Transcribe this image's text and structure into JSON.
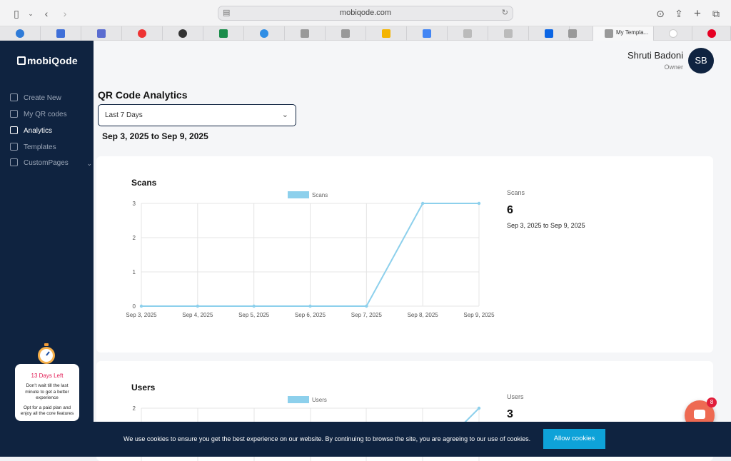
{
  "browser": {
    "url": "mobiqode.com",
    "active_tab_label": "My Templa..."
  },
  "sidebar": {
    "logo": "mobiQode",
    "items": [
      {
        "label": "Create New",
        "icon": "plus-icon"
      },
      {
        "label": "My QR codes",
        "icon": "qr-icon"
      },
      {
        "label": "Analytics",
        "icon": "chart-icon",
        "active": true
      },
      {
        "label": "Templates",
        "icon": "template-icon"
      },
      {
        "label": "CustomPages",
        "icon": "page-icon",
        "has_submenu": true
      }
    ],
    "promo": {
      "days_left": "13 Days Left",
      "text1": "Don't wait till the last minute to get a better experience",
      "text2": "Opt for a paid plan and enjoy all the core features"
    }
  },
  "header": {
    "user_name": "Shruti Badoni",
    "user_role": "Owner",
    "avatar_initials": "SB"
  },
  "main": {
    "title": "QR Code Analytics",
    "range_select": "Last 7 Days",
    "date_range": "Sep 3, 2025 to Sep 9, 2025"
  },
  "scans_card": {
    "title": "Scans",
    "stat_label": "Scans",
    "stat_value": "6",
    "stat_range": "Sep 3, 2025 to Sep 9, 2025"
  },
  "users_card": {
    "title": "Users",
    "stat_label": "Users",
    "stat_value": "3"
  },
  "chart_data": [
    {
      "type": "line",
      "title": "Scans",
      "legend": [
        "Scans"
      ],
      "legend_position": "top",
      "grid": true,
      "x": [
        "Sep 3, 2025",
        "Sep 4, 2025",
        "Sep 5, 2025",
        "Sep 6, 2025",
        "Sep 7, 2025",
        "Sep 8, 2025",
        "Sep 9, 2025"
      ],
      "series": [
        {
          "name": "Scans",
          "values": [
            0,
            0,
            0,
            0,
            0,
            3,
            3
          ]
        }
      ],
      "yticks": [
        0,
        1,
        2,
        3
      ],
      "ylim": [
        0,
        3
      ],
      "color": "#8dd0ec"
    },
    {
      "type": "line",
      "title": "Users",
      "legend": [
        "Users"
      ],
      "legend_position": "top",
      "grid": true,
      "series": [
        {
          "name": "Users",
          "values": []
        }
      ],
      "yticks": [
        2
      ],
      "color": "#8dd0ec"
    }
  ],
  "cookie": {
    "text": "We use cookies to ensure you get the best experience on our website. By continuing to browse the site, you are agreeing to our use of cookies.",
    "button": "Allow cookies"
  },
  "chat": {
    "badge": "8"
  }
}
